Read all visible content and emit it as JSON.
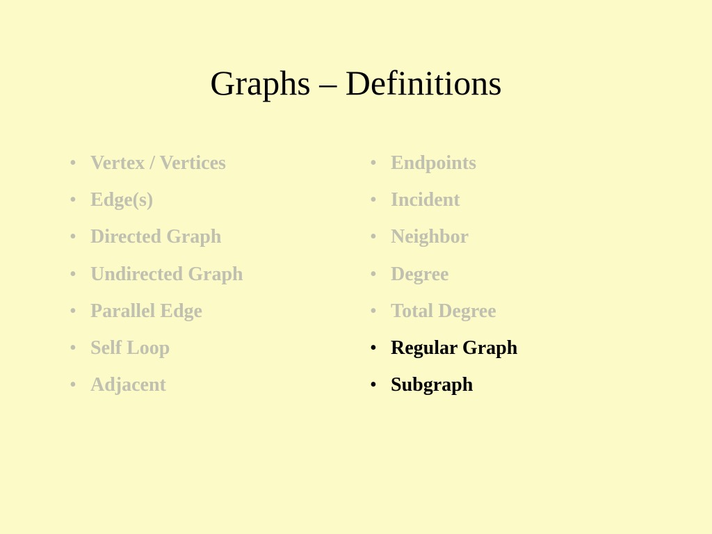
{
  "slide": {
    "title": "Graphs – Definitions",
    "background_color": "#fcfac7",
    "title_color": "#000000",
    "title_fontsize": 50,
    "item_fontsize": 28,
    "faded_color": "#c0c0b0",
    "active_color": "#000000",
    "left_column": [
      {
        "text": "Vertex / Vertices",
        "active": false
      },
      {
        "text": "Edge(s)",
        "active": false
      },
      {
        "text": "Directed Graph",
        "active": false
      },
      {
        "text": "Undirected Graph",
        "active": false
      },
      {
        "text": "Parallel Edge",
        "active": false
      },
      {
        "text": "Self Loop",
        "active": false
      },
      {
        "text": "Adjacent",
        "active": false
      }
    ],
    "right_column": [
      {
        "text": "Endpoints",
        "active": false
      },
      {
        "text": "Incident",
        "active": false
      },
      {
        "text": "Neighbor",
        "active": false
      },
      {
        "text": "Degree",
        "active": false
      },
      {
        "text": "Total Degree",
        "active": false
      },
      {
        "text": "Regular Graph",
        "active": true
      },
      {
        "text": "Subgraph",
        "active": true
      }
    ]
  }
}
